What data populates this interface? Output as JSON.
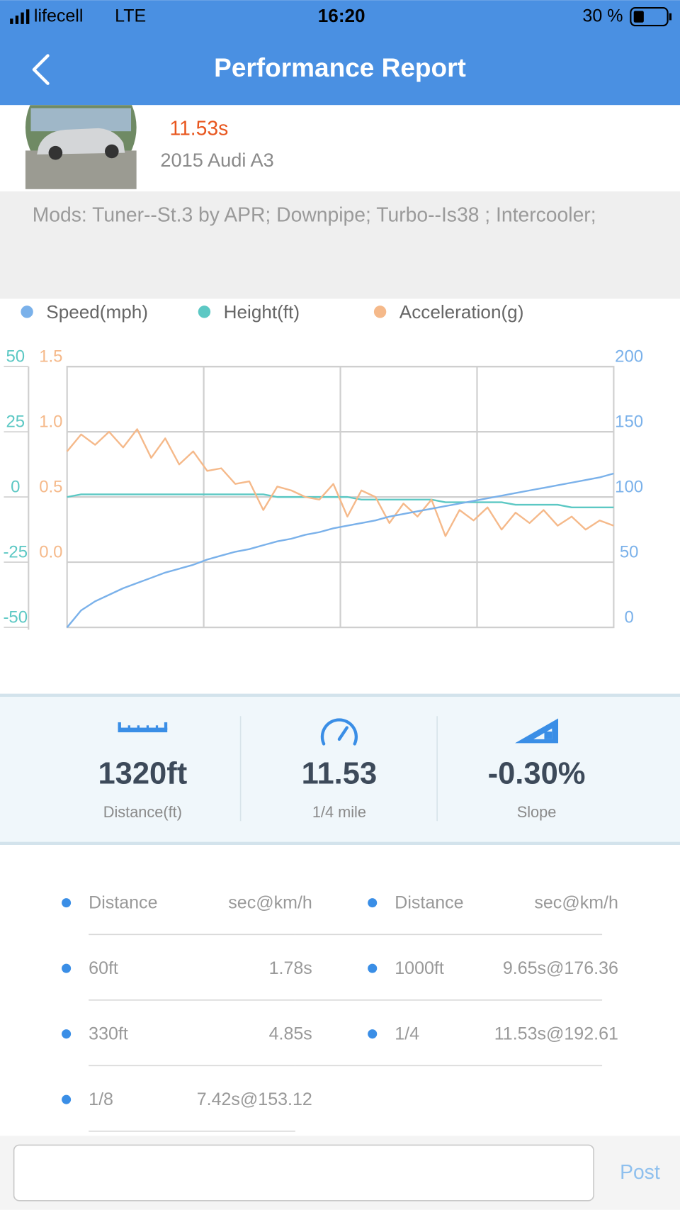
{
  "status_bar": {
    "carrier": "lifecell",
    "network": "LTE",
    "time": "16:20",
    "battery": "30 %"
  },
  "header": {
    "title": "Performance Report"
  },
  "car": {
    "time": "11.53s",
    "model": "2015 Audi A3"
  },
  "mods": "Mods: Tuner--St.3 by APR; Downpipe; Turbo--Is38 ; Intercooler;",
  "chart_data": {
    "type": "line",
    "categories": [
      null,
      null,
      null,
      null,
      null,
      null,
      null,
      null,
      null,
      null,
      null,
      null,
      null,
      null,
      null,
      null,
      null,
      null,
      null,
      null,
      null,
      null,
      null,
      null,
      null,
      null,
      null,
      null,
      null,
      null,
      null,
      null,
      null,
      null,
      null,
      null,
      null,
      null,
      null,
      null
    ],
    "series": [
      {
        "name": "Speed(mph)",
        "color": "#7ab1ea",
        "axis": "y2",
        "values": [
          0,
          13,
          20,
          25,
          30,
          34,
          38,
          42,
          45,
          48,
          52,
          55,
          58,
          60,
          63,
          66,
          68,
          71,
          73,
          76,
          78,
          80,
          82,
          85,
          87,
          89,
          91,
          93,
          95,
          97,
          99,
          101,
          103,
          105,
          107,
          109,
          111,
          113,
          115,
          118
        ]
      },
      {
        "name": "Height(ft)",
        "color": "#5cc8c4",
        "axis": "y",
        "values": [
          0,
          1,
          1,
          1,
          1,
          1,
          1,
          1,
          1,
          1,
          1,
          1,
          1,
          1,
          1,
          0,
          0,
          0,
          0,
          0,
          0,
          -1,
          -1,
          -1,
          -1,
          -1,
          -1,
          -2,
          -2,
          -2,
          -2,
          -2,
          -3,
          -3,
          -3,
          -3,
          -4,
          -4,
          -4,
          -4
        ]
      },
      {
        "name": "Acceleration(g)",
        "color": "#f5b98a",
        "axis": "y3",
        "values": [
          0.85,
          0.98,
          0.9,
          1.0,
          0.88,
          1.02,
          0.8,
          0.95,
          0.75,
          0.85,
          0.7,
          0.72,
          0.6,
          0.62,
          0.4,
          0.58,
          0.55,
          0.5,
          0.48,
          0.6,
          0.35,
          0.55,
          0.5,
          0.3,
          0.45,
          0.35,
          0.48,
          0.2,
          0.4,
          0.32,
          0.42,
          0.25,
          0.38,
          0.3,
          0.4,
          0.28,
          0.35,
          0.25,
          0.32,
          0.28
        ]
      }
    ],
    "ylim": [
      -50,
      50
    ],
    "yticks": [
      -50,
      -25,
      0,
      25,
      50
    ],
    "y2lim": [
      0,
      200
    ],
    "y2ticks": [
      0,
      50,
      100,
      150,
      200
    ],
    "y3lim": [
      -0.5,
      1.5
    ],
    "y3ticks": [
      {
        "value": 0,
        "label": "0.0"
      },
      0.5,
      {
        "value": 1,
        "label": "1.0"
      },
      1.5
    ],
    "grid": true,
    "legend": "top"
  },
  "stats": [
    {
      "value": "1320ft",
      "label": "Distance(ft)"
    },
    {
      "value": "11.53",
      "label": "1/4 mile"
    },
    {
      "value": "-0.30%",
      "label": "Slope"
    }
  ],
  "splits": [
    {
      "header": [
        "Distance",
        "sec@km/h"
      ],
      "rows": [
        [
          "60ft",
          "1.78s"
        ],
        [
          "330ft",
          "4.85s"
        ],
        [
          "1/8",
          "7.42s@153.12"
        ]
      ]
    },
    {
      "header": [
        "Distance",
        "sec@km/h"
      ],
      "rows": [
        [
          "1000ft",
          "9.65s@176.36"
        ],
        [
          "1/4",
          "11.53s@192.61"
        ]
      ]
    }
  ],
  "post_button": "Post"
}
